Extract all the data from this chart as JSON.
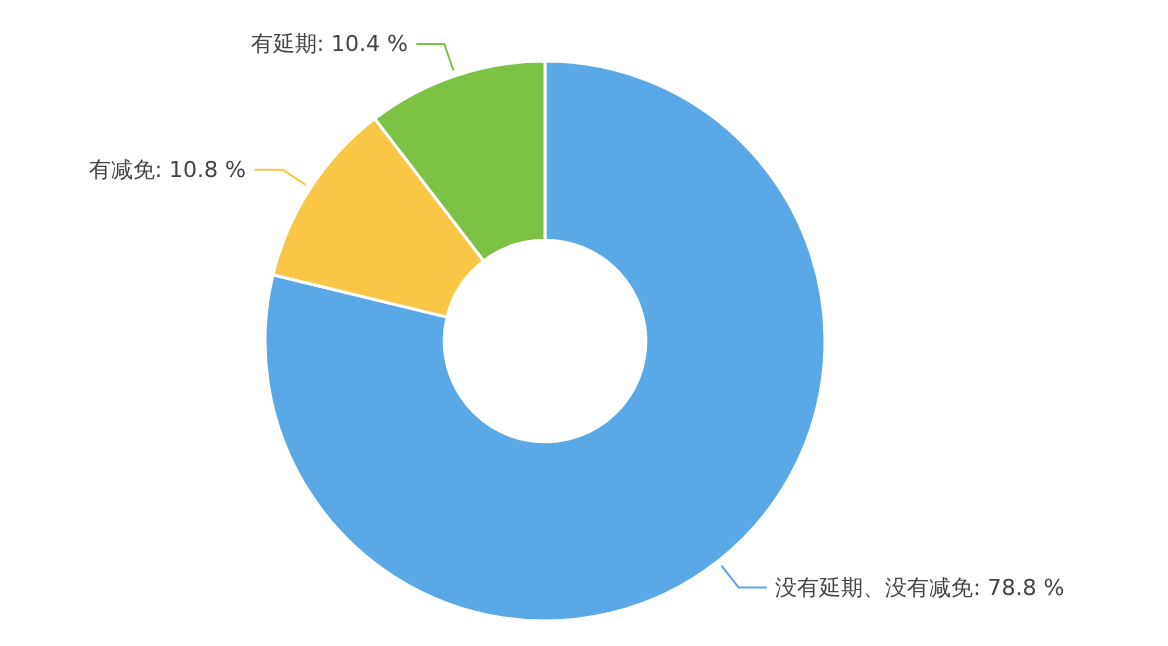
{
  "chart_data": {
    "type": "donut",
    "categories": [
      "没有延期、没有减免",
      "有减免",
      "有延期"
    ],
    "values": [
      78.8,
      10.8,
      10.4
    ],
    "colors": [
      "#5aa9e6",
      "#f9c646",
      "#7cc245"
    ],
    "value_labels": [
      "78.8 %",
      "10.8 %",
      "10.4 %"
    ]
  }
}
